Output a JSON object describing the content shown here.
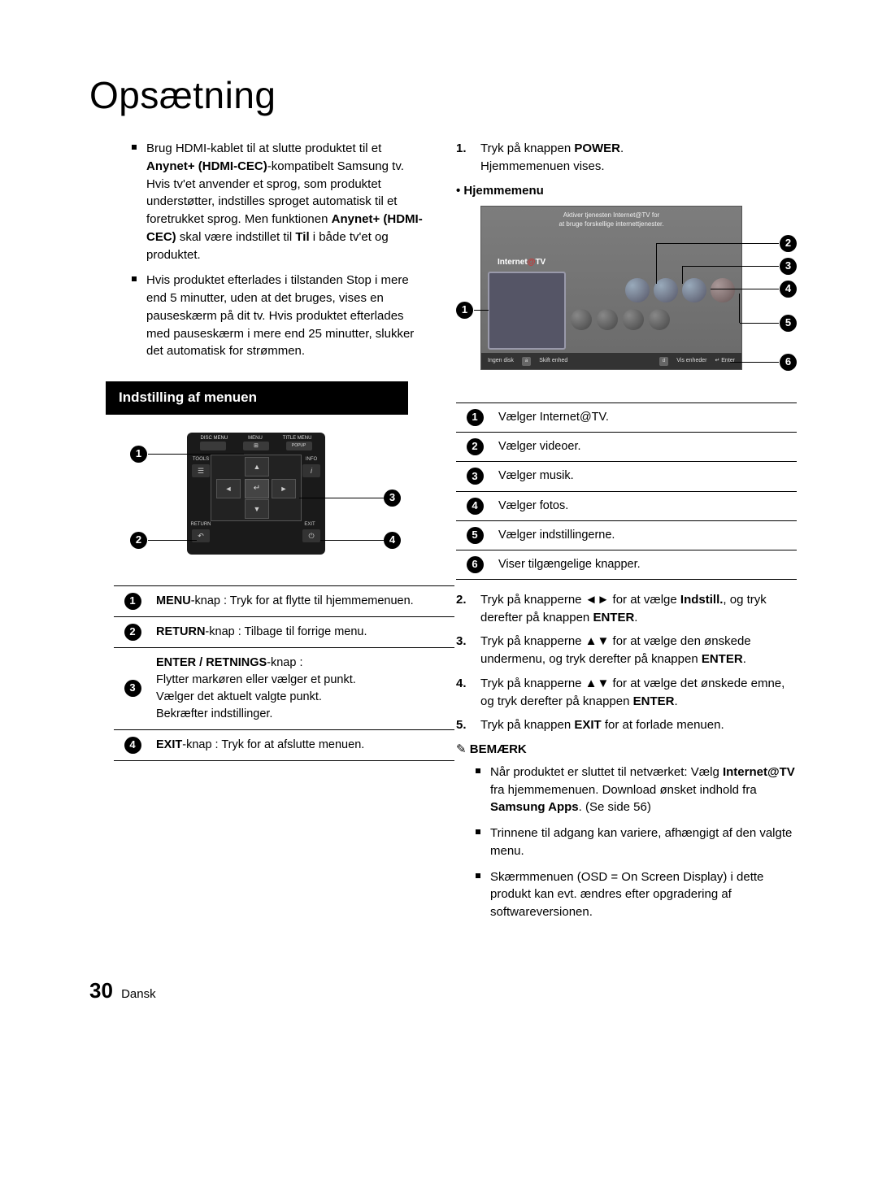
{
  "page_title": "Opsætning",
  "left": {
    "bullets": [
      {
        "pre": "Brug HDMI-kablet til at slutte produktet til et ",
        "b1": "Anynet+ (HDMI-CEC)",
        "mid": "-kompatibelt Samsung tv. Hvis tv'et anvender et sprog, som produktet understøtter, indstilles sproget automatisk til et foretrukket sprog. Men funktionen ",
        "b2": "Anynet+ (HDMI-CEC)",
        "mid2": " skal være indstillet til ",
        "b3": "Til",
        "post": " i både tv'et og produktet."
      },
      {
        "text": "Hvis produktet efterlades i tilstanden Stop i mere end 5 minutter, uden at det bruges, vises en pauseskærm på dit tv. Hvis produktet efterlades med pauseskærm i mere end 25 minutter, slukker det automatisk for strømmen."
      }
    ],
    "section_title": "Indstilling af menuen",
    "remote": {
      "top_labels": [
        "DISC MENU",
        "MENU",
        "TITLE MENU"
      ],
      "popup": "POPUP",
      "tools": "TOOLS",
      "info": "INFO",
      "return": "RETURN",
      "exit": "EXIT",
      "center": "↵",
      "arrows": {
        "up": "▲",
        "down": "▼",
        "left": "◄",
        "right": "►"
      },
      "tools_icon": "☰",
      "info_icon": "i",
      "return_icon": "↶",
      "exit_icon": "⏻"
    },
    "remote_table": [
      {
        "num": "1",
        "html": "<b>MENU</b>-knap : Tryk for at flytte til hjemmemenuen."
      },
      {
        "num": "2",
        "html": "<b>RETURN</b>-knap : Tilbage til forrige menu."
      },
      {
        "num": "3",
        "html": "<b>ENTER / RETNINGS</b>-knap :<br>Flytter markøren eller vælger et punkt.<br>Vælger det aktuelt valgte punkt.<br>Bekræfter indstillinger."
      },
      {
        "num": "4",
        "html": "<b>EXIT</b>-knap : Tryk for at afslutte menuen."
      }
    ]
  },
  "right": {
    "step1": {
      "n": "1.",
      "pre": "Tryk på knappen ",
      "b": "POWER",
      "post": ".",
      "line2": "Hjemmemenuen vises."
    },
    "home_label": "Hjemmemenu",
    "home_screen": {
      "banner_line1": "Aktiver tjenesten Internet@TV for",
      "banner_line2": "at bruge forskellige internettjenester.",
      "tag_pre": "Internet",
      "tag_at": "@",
      "tag_post": "TV",
      "bottom_left": "Ingen disk",
      "bottom_a": "a",
      "bottom_a_txt": "Skift enhed",
      "bottom_d": "d",
      "bottom_d_txt": "Vis enheder",
      "bottom_enter": "↵ Enter"
    },
    "home_table": [
      {
        "num": "1",
        "text": "Vælger Internet@TV."
      },
      {
        "num": "2",
        "text": "Vælger videoer."
      },
      {
        "num": "3",
        "text": "Vælger musik."
      },
      {
        "num": "4",
        "text": "Vælger fotos."
      },
      {
        "num": "5",
        "text": "Vælger indstillingerne."
      },
      {
        "num": "6",
        "text": "Viser tilgængelige knapper."
      }
    ],
    "steps_rest": [
      {
        "n": "2.",
        "html": "Tryk på knapperne ◄► for at vælge <b>Indstill.</b>, og tryk derefter på knappen <b>ENTER</b>."
      },
      {
        "n": "3.",
        "html": "Tryk på knapperne ▲▼ for at vælge den ønskede undermenu, og tryk derefter på knappen <b>ENTER</b>."
      },
      {
        "n": "4.",
        "html": "Tryk på knapperne ▲▼ for at vælge det ønskede emne, og tryk derefter på knappen <b>ENTER</b>."
      },
      {
        "n": "5.",
        "html": "Tryk på knappen <b>EXIT</b> for at forlade menuen."
      }
    ],
    "note_head": "BEMÆRK",
    "notes": [
      "Når produktet er sluttet til netværket: Vælg <b>Internet@TV</b> fra hjemmemenuen. Download ønsket indhold fra <b>Samsung Apps</b>. (Se side 56)",
      "Trinnene til adgang kan variere, afhængigt af den valgte menu.",
      "Skærmmenuen (OSD = On Screen Display) i dette produkt kan evt. ændres efter opgradering af softwareversionen."
    ]
  },
  "footer": {
    "page": "30",
    "lang": "Dansk"
  }
}
